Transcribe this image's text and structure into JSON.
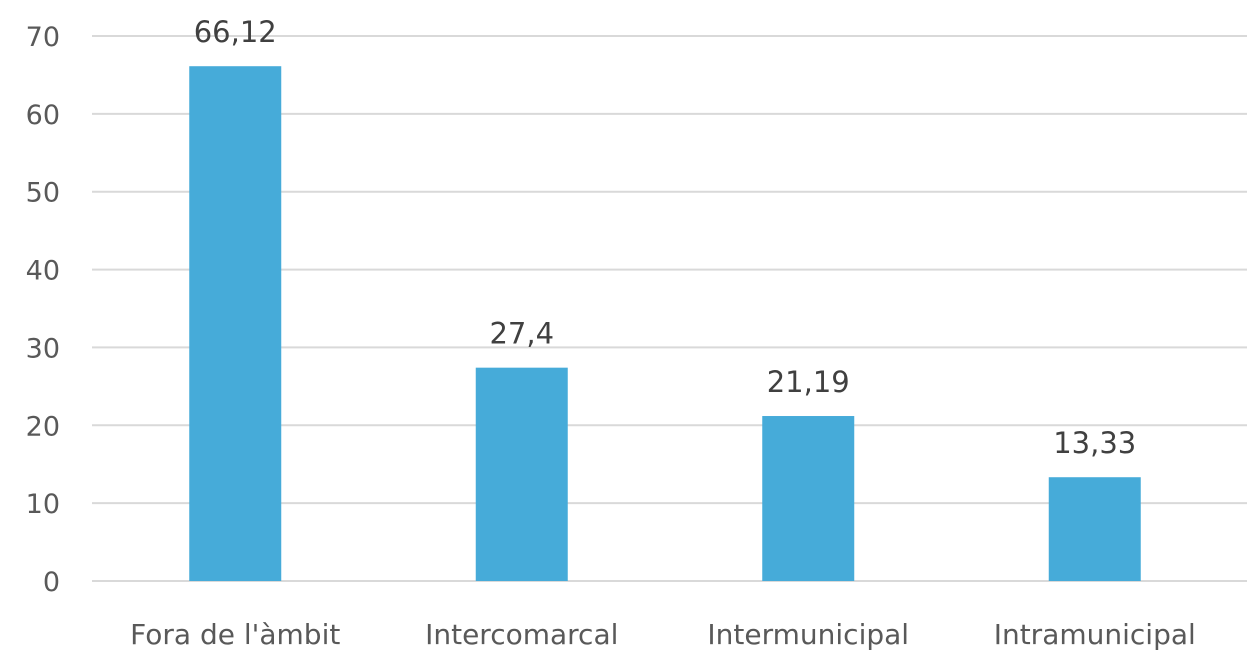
{
  "chart_data": {
    "type": "bar",
    "categories": [
      "Fora de l'àmbit",
      "Intercomarcal",
      "Intermunicipal",
      "Intramunicipal"
    ],
    "values": [
      66.12,
      27.4,
      21.19,
      13.33
    ],
    "data_labels": [
      "66,12",
      "27,4",
      "21,19",
      "13,33"
    ],
    "y_ticks": [
      0,
      10,
      20,
      30,
      40,
      50,
      60,
      70
    ],
    "ylim": [
      0,
      70
    ],
    "grid": true,
    "legend": "none",
    "bar_color": "#46abd9",
    "title": "",
    "xlabel": "",
    "ylabel": ""
  }
}
